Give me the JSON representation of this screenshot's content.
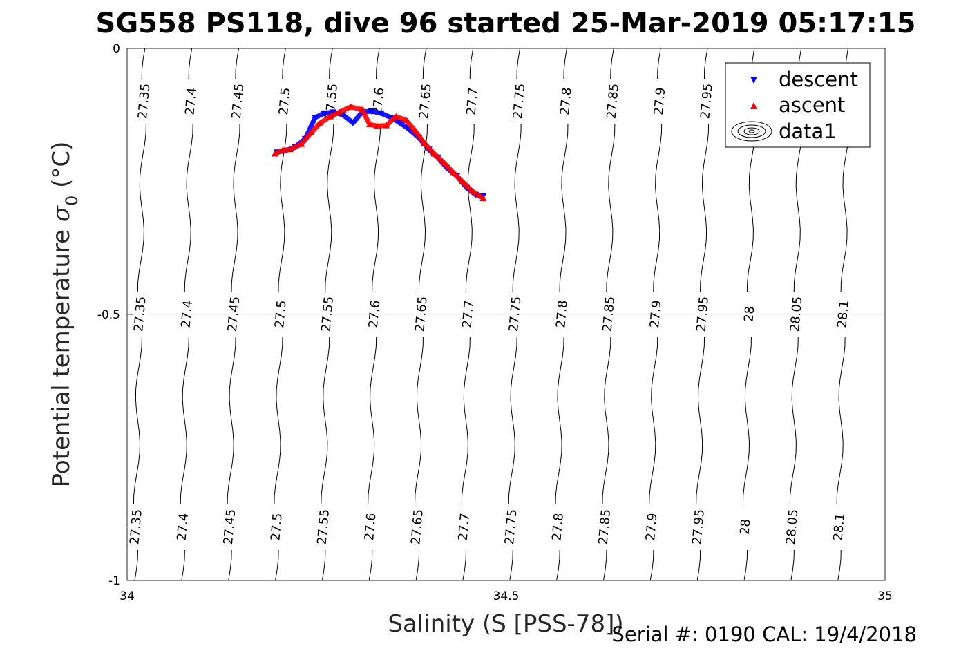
{
  "chart_data": {
    "type": "scatter",
    "title": "SG558 PS118, dive 96 started 25-Mar-2019 05:17:15",
    "xlabel": "Salinity (S [PSS-78])",
    "ylabel": "Potential temperature σ₀ (°C)",
    "ylabel_main": "Potential temperature ",
    "ylabel_sigma": "σ",
    "ylabel_sub": "0",
    "ylabel_unit": " (°C)",
    "xlim": [
      34,
      35
    ],
    "ylim": [
      -1,
      0
    ],
    "xticks": [
      "34",
      "34.5",
      "35"
    ],
    "yticks": [
      "0",
      "-0.5",
      "-1"
    ],
    "grid": true,
    "legend_position": "top-right",
    "legend": [
      "descent",
      "ascent",
      "data1"
    ],
    "contour_levels": [
      "27.35",
      "27.4",
      "27.45",
      "27.5",
      "27.55",
      "27.6",
      "27.65",
      "27.7",
      "27.75",
      "27.8",
      "27.85",
      "27.9",
      "27.95",
      "28",
      "28.05",
      "28.1"
    ],
    "series": [
      {
        "name": "descent",
        "color": "#0000ff",
        "marker": "triangle-down",
        "x": [
          34.198,
          34.21,
          34.222,
          34.235,
          34.248,
          34.26,
          34.272,
          34.285,
          34.298,
          34.31,
          34.322,
          34.335,
          34.348,
          34.36,
          34.372,
          34.385,
          34.398,
          34.41,
          34.422,
          34.435,
          34.448,
          34.46,
          34.47
        ],
        "y": [
          -0.195,
          -0.192,
          -0.185,
          -0.17,
          -0.13,
          -0.122,
          -0.12,
          -0.125,
          -0.14,
          -0.12,
          -0.118,
          -0.122,
          -0.13,
          -0.14,
          -0.152,
          -0.168,
          -0.19,
          -0.205,
          -0.225,
          -0.24,
          -0.262,
          -0.275,
          -0.277
        ]
      },
      {
        "name": "ascent",
        "color": "#ff0000",
        "marker": "triangle-up",
        "x": [
          34.195,
          34.205,
          34.215,
          34.23,
          34.243,
          34.255,
          34.268,
          34.28,
          34.295,
          34.31,
          34.32,
          34.33,
          34.342,
          34.355,
          34.368,
          34.38,
          34.392,
          34.405,
          34.418,
          34.43,
          34.442,
          34.455,
          34.47
        ],
        "y": [
          -0.198,
          -0.192,
          -0.19,
          -0.18,
          -0.158,
          -0.14,
          -0.128,
          -0.12,
          -0.11,
          -0.115,
          -0.143,
          -0.146,
          -0.145,
          -0.128,
          -0.135,
          -0.155,
          -0.178,
          -0.198,
          -0.215,
          -0.233,
          -0.25,
          -0.268,
          -0.282
        ]
      }
    ]
  },
  "footer": {
    "serial": "Serial #: 0190  CAL: 19/4/2018"
  }
}
